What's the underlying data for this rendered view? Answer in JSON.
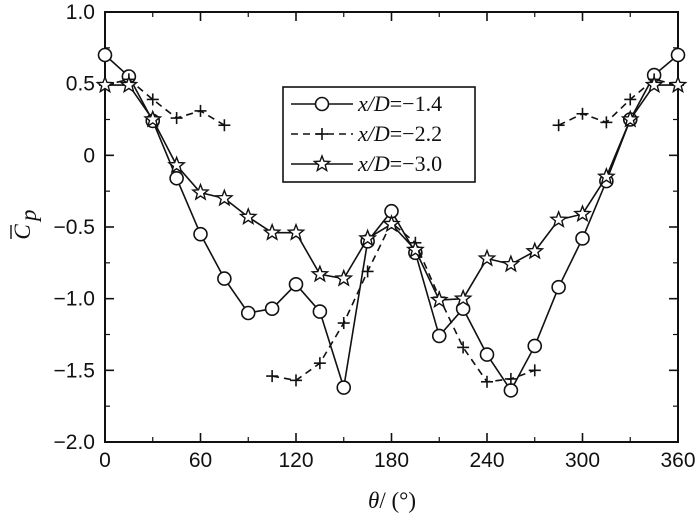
{
  "chart_data": {
    "type": "line",
    "xlabel": {
      "symbol": "θ",
      "unit": "/ (°)"
    },
    "ylabel": {
      "symbol": "C",
      "subscript": "p",
      "overbar": true
    },
    "xlim": [
      0,
      360
    ],
    "ylim": [
      -2.0,
      1.0
    ],
    "x_ticks": [
      0,
      60,
      120,
      180,
      240,
      300,
      360
    ],
    "x_tick_labels": [
      "0",
      "60",
      "120",
      "180",
      "240",
      "300",
      "360"
    ],
    "y_ticks": [
      1.0,
      0.5,
      0,
      -0.5,
      -1.0,
      -1.5,
      -2.0
    ],
    "y_tick_labels": [
      "1.0",
      "0.5",
      "0",
      "−0.5",
      "−1.0",
      "−1.5",
      "−2.0"
    ],
    "grid": false,
    "legend_position": "top-center",
    "series": [
      {
        "name": "x/D=−1.4",
        "name_parts": {
          "var": "x/D",
          "value": "=−1.4"
        },
        "line_style": "solid",
        "marker": "circle",
        "segments": [
          [
            [
              0,
              0.7
            ],
            [
              15,
              0.55
            ],
            [
              30,
              0.24
            ],
            [
              45,
              -0.16
            ],
            [
              60,
              -0.55
            ],
            [
              75,
              -0.86
            ],
            [
              90,
              -1.1
            ],
            [
              105,
              -1.07
            ],
            [
              120,
              -0.9
            ],
            [
              135,
              -1.09
            ],
            [
              150,
              -1.62
            ],
            [
              165,
              -0.6
            ],
            [
              180,
              -0.39
            ],
            [
              195,
              -0.68
            ],
            [
              210,
              -1.26
            ],
            [
              225,
              -1.07
            ],
            [
              240,
              -1.39
            ],
            [
              255,
              -1.64
            ],
            [
              270,
              -1.33
            ],
            [
              285,
              -0.92
            ],
            [
              300,
              -0.58
            ],
            [
              315,
              -0.18
            ],
            [
              330,
              0.25
            ],
            [
              345,
              0.56
            ],
            [
              360,
              0.7
            ]
          ]
        ]
      },
      {
        "name": "x/D=−2.2",
        "name_parts": {
          "var": "x/D",
          "value": "=−2.2"
        },
        "line_style": "dashed",
        "marker": "plus",
        "segments": [
          [
            [
              0,
              0.49
            ],
            [
              15,
              0.53
            ],
            [
              30,
              0.39
            ],
            [
              45,
              0.26
            ],
            [
              60,
              0.31
            ],
            [
              75,
              0.21
            ]
          ],
          [
            [
              105,
              -1.54
            ],
            [
              120,
              -1.57
            ],
            [
              135,
              -1.45
            ],
            [
              150,
              -1.17
            ],
            [
              165,
              -0.81
            ],
            [
              180,
              -0.47
            ],
            [
              195,
              -0.61
            ],
            [
              210,
              -0.99
            ],
            [
              225,
              -1.34
            ],
            [
              240,
              -1.58
            ],
            [
              255,
              -1.56
            ],
            [
              270,
              -1.5
            ]
          ],
          [
            [
              285,
              0.21
            ],
            [
              300,
              0.29
            ],
            [
              315,
              0.23
            ],
            [
              330,
              0.39
            ],
            [
              345,
              0.53
            ],
            [
              360,
              0.49
            ]
          ]
        ]
      },
      {
        "name": "x/D=−3.0",
        "name_parts": {
          "var": "x/D",
          "value": "=−3.0"
        },
        "line_style": "solid",
        "marker": "star",
        "segments": [
          [
            [
              0,
              0.49
            ],
            [
              15,
              0.49
            ],
            [
              30,
              0.25
            ],
            [
              45,
              -0.07
            ],
            [
              60,
              -0.26
            ],
            [
              75,
              -0.3
            ],
            [
              90,
              -0.43
            ],
            [
              105,
              -0.54
            ],
            [
              120,
              -0.54
            ],
            [
              135,
              -0.83
            ],
            [
              150,
              -0.86
            ],
            [
              165,
              -0.58
            ],
            [
              180,
              -0.48
            ],
            [
              195,
              -0.66
            ],
            [
              210,
              -1.01
            ],
            [
              225,
              -1.0
            ],
            [
              240,
              -0.72
            ],
            [
              255,
              -0.76
            ],
            [
              270,
              -0.67
            ],
            [
              285,
              -0.45
            ],
            [
              300,
              -0.41
            ],
            [
              315,
              -0.15
            ],
            [
              330,
              0.25
            ],
            [
              345,
              0.49
            ],
            [
              360,
              0.49
            ]
          ]
        ]
      }
    ]
  }
}
